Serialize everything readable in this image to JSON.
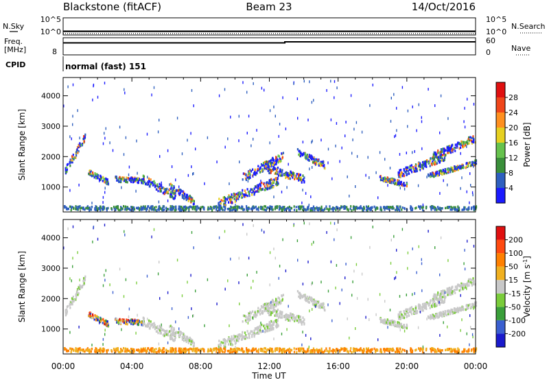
{
  "header": {
    "station": "Blackstone (fitACF)",
    "beam": "Beam 23",
    "date": "14/Oct/2016"
  },
  "chart_data": [
    {
      "type": "line",
      "panel": "noise",
      "left_label": "N.Sky",
      "right_label": "N.Search",
      "left_ticks": [
        "10^5",
        "10^0"
      ],
      "right_ticks": [
        "10^5",
        "10^0"
      ],
      "series": [
        {
          "style": "solid",
          "x": [
            0,
            6,
            12,
            18,
            24
          ],
          "y": [
            1.0,
            1.0,
            1.0,
            1.0,
            1.0
          ]
        },
        {
          "style": "dotted",
          "x": [
            0,
            6,
            12,
            18,
            24
          ],
          "y": [
            0.2,
            0.2,
            0.2,
            0.2,
            0.2
          ]
        }
      ]
    },
    {
      "type": "line",
      "panel": "frequency",
      "left_label_1": "Freq.",
      "left_label_2": "[MHz]",
      "left_ticks": [
        "8"
      ],
      "right_label": "Nave",
      "right_ticks": [
        "60",
        "0"
      ],
      "series": [
        {
          "style": "solid",
          "x": [
            0,
            12.9,
            12.9,
            24
          ],
          "y": [
            10.5,
            10.5,
            10.8,
            10.8
          ]
        }
      ]
    },
    {
      "type": "text",
      "panel": "cpid",
      "label": "CPID",
      "value": "normal (fast) 151"
    },
    {
      "type": "heatmap",
      "panel": "power",
      "ylabel": "Slant Range [km]",
      "yticks": [
        1000,
        2000,
        3000,
        4000
      ],
      "ylim": [
        180,
        4600
      ],
      "xlim": [
        0,
        24
      ],
      "colorbar_label": "Power [dB]",
      "colorbar_ticks": [
        "4",
        "8",
        "12",
        "16",
        "20",
        "24",
        "28"
      ],
      "colorbar_colors": [
        "#1a1aff",
        "#2e5fbf",
        "#3a8f3a",
        "#66c24d",
        "#e6d020",
        "#ff9020",
        "#f0461a",
        "#e01010"
      ]
    },
    {
      "type": "heatmap",
      "panel": "velocity",
      "ylabel": "Slant Range [km]",
      "yticks": [
        1000,
        2000,
        3000,
        4000
      ],
      "ylim": [
        180,
        4600
      ],
      "xlim": [
        0,
        24
      ],
      "xticks": [
        "00:00",
        "04:00",
        "08:00",
        "12:00",
        "16:00",
        "20:00",
        "00:00"
      ],
      "xlabel": "Time UT",
      "colorbar_label": "Velocity [m s",
      "colorbar_label_sup": "-1",
      "colorbar_label_end": "]",
      "colorbar_ticks": [
        "200",
        "100",
        "50",
        "15",
        "-15",
        "-50",
        "-100",
        "-200"
      ],
      "colorbar_colors": [
        "#1a1acc",
        "#3a5fd0",
        "#3a9f3a",
        "#7acc3a",
        "#c8c8c8",
        "#f0b020",
        "#ff8000",
        "#ff4a10",
        "#e01010"
      ]
    }
  ]
}
